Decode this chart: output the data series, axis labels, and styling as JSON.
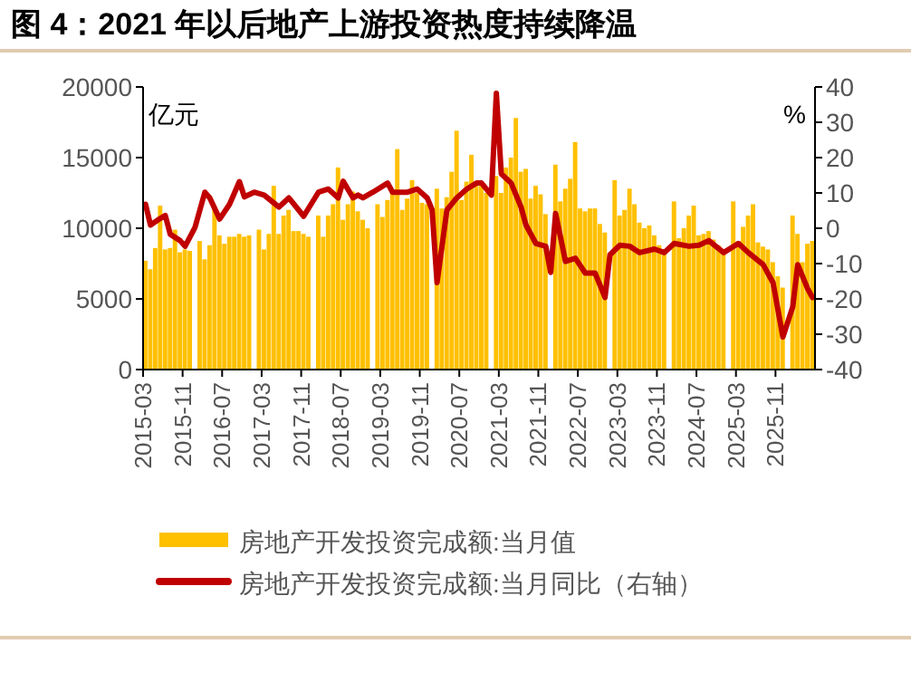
{
  "chart_data": {
    "type": "bar",
    "title": "图 4：2021 年以后地产上游投资热度持续降温",
    "ylabel": "亿元",
    "y2label": "%",
    "x": [
      "2015-03",
      "2015-04",
      "2015-05",
      "2015-06",
      "2015-07",
      "2015-08",
      "2015-09",
      "2015-10",
      "2015-11",
      "2015-12",
      "2016-01",
      "2016-02",
      "2016-03",
      "2016-04",
      "2016-05",
      "2016-06",
      "2016-07",
      "2016-08",
      "2016-09",
      "2016-10",
      "2016-11",
      "2016-12",
      "2017-01",
      "2017-02",
      "2017-03",
      "2017-04",
      "2017-05",
      "2017-06",
      "2017-07",
      "2017-08",
      "2017-09",
      "2017-10",
      "2017-11",
      "2017-12",
      "2018-01",
      "2018-02",
      "2018-03",
      "2018-04",
      "2018-05",
      "2018-06",
      "2018-07",
      "2018-08",
      "2018-09",
      "2018-10",
      "2018-11",
      "2018-12",
      "2019-01",
      "2019-02",
      "2019-03",
      "2019-04",
      "2019-05",
      "2019-06",
      "2019-07",
      "2019-08",
      "2019-09",
      "2019-10",
      "2019-11",
      "2019-12",
      "2020-01",
      "2020-02",
      "2020-03",
      "2020-04",
      "2020-05",
      "2020-06",
      "2020-07",
      "2020-08",
      "2020-09",
      "2020-10",
      "2020-11",
      "2020-12",
      "2021-01",
      "2021-02",
      "2021-03",
      "2021-04",
      "2021-05",
      "2021-06",
      "2021-07",
      "2021-08",
      "2021-09",
      "2021-10",
      "2021-11",
      "2021-12",
      "2022-01",
      "2022-02",
      "2022-03",
      "2022-04",
      "2022-05",
      "2022-06",
      "2022-07",
      "2022-08",
      "2022-09",
      "2022-10",
      "2022-11",
      "2022-12",
      "2023-01",
      "2023-02",
      "2023-03",
      "2023-04",
      "2023-05",
      "2023-06",
      "2023-07",
      "2023-08",
      "2023-09",
      "2023-10",
      "2023-11",
      "2023-12",
      "2024-01",
      "2024-02",
      "2024-03",
      "2024-04",
      "2024-05",
      "2024-06",
      "2024-07",
      "2024-08",
      "2024-09",
      "2024-10",
      "2024-11",
      "2024-12",
      "2025-01",
      "2025-02",
      "2025-03",
      "2025-04",
      "2025-05",
      "2025-06",
      "2025-07",
      "2025-08",
      "2025-09",
      "2025-10",
      "2025-11",
      "2025-12",
      "2026-01",
      "2026-02",
      "2026-03",
      "2026-04",
      "2026-05",
      "2026-06"
    ],
    "series": [
      {
        "name": "房地产开发投资完成额:当月值",
        "color": "#ffc000",
        "values": [
          7700,
          7100,
          8600,
          11600,
          8500,
          8600,
          9900,
          8300,
          8500,
          8400,
          null,
          9100,
          7800,
          8800,
          11500,
          9500,
          8900,
          9400,
          9400,
          9600,
          9400,
          9500,
          null,
          9900,
          8500,
          9600,
          13000,
          9600,
          10900,
          11300,
          9800,
          9800,
          9600,
          9400,
          null,
          10900,
          9400,
          10900,
          11700,
          14300,
          10600,
          11700,
          12600,
          11200,
          10600,
          10000,
          null,
          11700,
          10800,
          12000,
          12500,
          15600,
          11300,
          12100,
          13400,
          12500,
          11800,
          11700,
          null,
          12800,
          11400,
          12200,
          14000,
          16900,
          12000,
          13300,
          15200,
          13000,
          13000,
          12500,
          null,
          13700,
          12500,
          14300,
          15000,
          17800,
          14000,
          14200,
          12100,
          13000,
          12400,
          11000,
          null,
          14500,
          11900,
          12800,
          13500,
          16100,
          11400,
          11200,
          11400,
          11400,
          10300,
          9700,
          null,
          13400,
          10900,
          11300,
          12800,
          11700,
          10400,
          10000,
          10200,
          9500,
          8800,
          8500,
          null,
          11900,
          9300,
          10000,
          10900,
          11600,
          9500,
          9600,
          9800,
          9200,
          8800,
          8400,
          null,
          11900,
          9100,
          10100,
          10900,
          11700,
          9000,
          8700,
          8500,
          7600,
          6600,
          5800,
          null,
          10900,
          9600,
          7600,
          8900,
          9100
        ]
      },
      {
        "name": "房地产开发投资完成额:当月同比（右轴）",
        "type": "line",
        "axis": "y2",
        "color": "#c00000",
        "x": [
          "2015-03",
          "2015-04",
          "2015-06",
          "2015-07",
          "2015-08",
          "2015-10",
          "2015-11",
          "2016-01",
          "2016-03",
          "2016-04",
          "2016-06",
          "2016-08",
          "2016-10",
          "2016-11",
          "2017-01",
          "2017-03",
          "2017-06",
          "2017-08",
          "2017-11",
          "2018-02",
          "2018-04",
          "2018-06",
          "2018-07",
          "2018-09",
          "2018-10",
          "2018-11",
          "2019-01",
          "2019-04",
          "2019-05",
          "2019-08",
          "2019-10",
          "2019-12",
          "2020-01",
          "2020-02",
          "2020-04",
          "2020-06",
          "2020-08",
          "2020-10",
          "2020-11",
          "2021-01",
          "2021-02",
          "2021-03",
          "2021-05",
          "2021-07",
          "2021-08",
          "2021-10",
          "2021-12",
          "2022-01",
          "2022-02",
          "2022-04",
          "2022-06",
          "2022-08",
          "2022-10",
          "2022-12",
          "2023-01",
          "2023-03",
          "2023-05",
          "2023-07",
          "2023-10",
          "2023-12",
          "2024-02",
          "2024-05",
          "2024-07",
          "2024-09",
          "2024-12",
          "2025-03",
          "2025-05",
          "2025-08",
          "2025-10",
          "2025-12",
          "2026-02",
          "2026-03",
          "2026-05",
          "2026-06"
        ],
        "values": [
          6.8,
          0.9,
          2.8,
          3.6,
          -1.7,
          -3.5,
          -5.1,
          0.2,
          10.2,
          8.6,
          2.6,
          6.8,
          13.2,
          8.9,
          10.2,
          9.4,
          6,
          8.6,
          3.4,
          10.2,
          11.1,
          8.6,
          13.3,
          8.6,
          9.4,
          8.6,
          10.2,
          12.8,
          10.2,
          10.2,
          11.1,
          8.6,
          5.2,
          -15.4,
          5.2,
          8.6,
          11.1,
          12.8,
          12.8,
          9.4,
          38.2,
          15.4,
          12.8,
          6,
          0.9,
          -4.3,
          -5.1,
          -12.5,
          4.2,
          -9.4,
          -8.5,
          -12.7,
          -12.7,
          -19.6,
          -7.5,
          -4.8,
          -5.1,
          -6.9,
          -5.9,
          -6.9,
          -4.3,
          -5.1,
          -4.8,
          -3.5,
          -6.9,
          -4.3,
          -6.9,
          -10.3,
          -15.4,
          -30.8,
          -22.2,
          -10.3,
          -17.1,
          -19.6
        ]
      }
    ],
    "xlim": [
      "2015-03",
      "2026-07"
    ],
    "xticks": [
      "2015-03",
      "2015-11",
      "2016-07",
      "2017-03",
      "2017-11",
      "2018-07",
      "2019-03",
      "2019-11",
      "2020-07",
      "2021-03",
      "2021-11",
      "2022-07",
      "2023-03",
      "2023-11",
      "2024-07",
      "2025-03",
      "2025-11"
    ],
    "ylim": [
      0,
      20000
    ],
    "yticks": [
      0,
      5000,
      10000,
      15000,
      20000
    ],
    "y2lim": [
      -40,
      40
    ],
    "y2ticks": [
      -40,
      -30,
      -20,
      -10,
      0,
      10,
      20,
      30,
      40
    ],
    "grid": false,
    "legend": "bottom"
  }
}
